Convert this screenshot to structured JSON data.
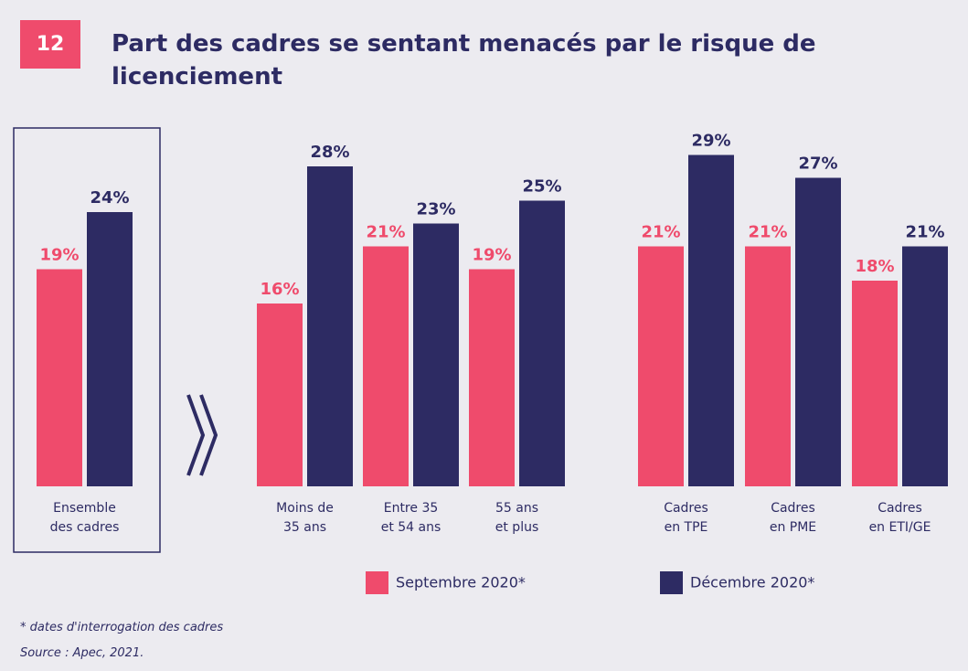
{
  "chart_data": {
    "type": "bar",
    "figure_number": "12",
    "title": "Part des cadres se sentant menacés par le risque de licenciement",
    "categories": [
      "Ensemble\ndes cadres",
      "Moins de\n35 ans",
      "Entre 35\net 54 ans",
      "55 ans\net plus",
      "Cadres\nen TPE",
      "Cadres\nen PME",
      "Cadres\nen ETI/GE"
    ],
    "series": [
      {
        "name": "Septembre 2020*",
        "color": "#ef4b6c",
        "values": [
          19,
          16,
          21,
          19,
          21,
          21,
          18
        ],
        "value_labels": [
          "19%",
          "16%",
          "21%",
          "19%",
          "21%",
          "21%",
          "18%"
        ]
      },
      {
        "name": "Décembre 2020*",
        "color": "#2d2b63",
        "values": [
          24,
          28,
          23,
          25,
          29,
          27,
          21
        ],
        "value_labels": [
          "24%",
          "28%",
          "23%",
          "25%",
          "29%",
          "27%",
          "21%"
        ]
      }
    ],
    "note": "* dates d'interrogation des cadres",
    "source": "Source : Apec, 2021."
  }
}
